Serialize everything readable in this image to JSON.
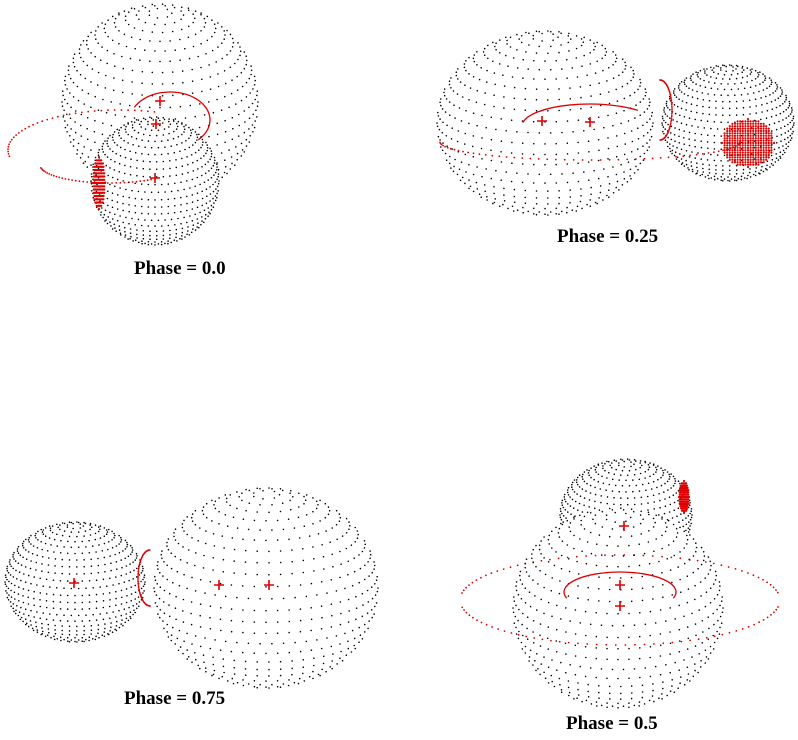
{
  "colors": {
    "surface_dots": "#000000",
    "spot": "#e00000",
    "orbit": "#e00000",
    "marker": "#e00000",
    "background": "#ffffff"
  },
  "panels": [
    {
      "caption": "Phase = 0.0"
    },
    {
      "caption": "Phase = 0.25"
    },
    {
      "caption": "Phase = 0.75"
    },
    {
      "caption": "Phase = 0.5"
    }
  ]
}
